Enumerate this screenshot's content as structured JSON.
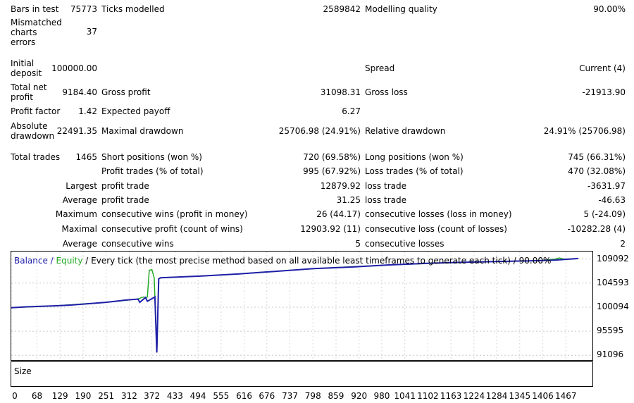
{
  "report": {
    "bars_label": "Bars in test",
    "bars_value": "75773",
    "ticks_label": "Ticks modelled",
    "ticks_value": "2589842",
    "quality_label": "Modelling quality",
    "quality_value": "90.00%",
    "mismatch_label": "Mismatched charts errors",
    "mismatch_value": "37",
    "initial_deposit_label": "Initial deposit",
    "initial_deposit_value": "100000.00",
    "spread_label": "Spread",
    "spread_value": "Current (4)",
    "net_profit_label": "Total net profit",
    "net_profit_value": "9184.40",
    "gross_profit_label": "Gross profit",
    "gross_profit_value": "31098.31",
    "gross_loss_label": "Gross loss",
    "gross_loss_value": "-21913.90",
    "profit_factor_label": "Profit factor",
    "profit_factor_value": "1.42",
    "expected_payoff_label": "Expected payoff",
    "expected_payoff_value": "6.27",
    "abs_drawdown_label": "Absolute drawdown",
    "abs_drawdown_value": "22491.35",
    "max_drawdown_label": "Maximal drawdown",
    "max_drawdown_value": "25706.98 (24.91%)",
    "rel_drawdown_label": "Relative drawdown",
    "rel_drawdown_value": "24.91% (25706.98)",
    "total_trades_label": "Total trades",
    "total_trades_value": "1465",
    "short_label": "Short positions (won %)",
    "short_value": "720 (69.58%)",
    "long_label": "Long positions (won %)",
    "long_value": "745 (66.31%)",
    "profit_trades_label": "Profit trades (% of total)",
    "profit_trades_value": "995 (67.92%)",
    "loss_trades_label": "Loss trades (% of total)",
    "loss_trades_value": "470 (32.08%)",
    "largest_label": "Largest",
    "largest_profit_label": "profit trade",
    "largest_profit_value": "12879.92",
    "largest_loss_label": "loss trade",
    "largest_loss_value": "-3631.97",
    "average_label": "Average",
    "average_profit_label": "profit trade",
    "average_profit_value": "31.25",
    "average_loss_label": "loss trade",
    "average_loss_value": "-46.63",
    "maximum_label": "Maximum",
    "max_cons_wins_label": "consecutive wins (profit in money)",
    "max_cons_wins_value": "26 (44.17)",
    "max_cons_losses_label": "consecutive losses (loss in money)",
    "max_cons_losses_value": "5 (-24.09)",
    "maximal_label": "Maximal",
    "maximal_cons_profit_label": "consecutive profit (count of wins)",
    "maximal_cons_profit_value": "12903.92 (11)",
    "maximal_cons_loss_label": "consecutive loss (count of losses)",
    "maximal_cons_loss_value": "-10282.28 (4)",
    "avg_cons_label": "Average",
    "avg_cons_wins_label": "consecutive wins",
    "avg_cons_wins_value": "5",
    "avg_cons_losses_label": "consecutive losses",
    "avg_cons_losses_value": "2"
  },
  "chart_data": {
    "type": "line",
    "title_parts": {
      "balance": "Balance",
      "sep1": " / ",
      "equity": "Equity",
      "rest": " / Every tick (the most precise method based on all available least timeframes to generate each tick) / 90.00%"
    },
    "y_ticks": [
      "109092",
      "104593",
      "100094",
      "95595",
      "91096"
    ],
    "y_tick_values": [
      109092,
      104593,
      100094,
      95595,
      91096
    ],
    "x_ticks": [
      "0",
      "68",
      "129",
      "190",
      "251",
      "312",
      "372",
      "433",
      "494",
      "555",
      "616",
      "676",
      "737",
      "798",
      "859",
      "920",
      "980",
      "1041",
      "1102",
      "1163",
      "1224",
      "1284",
      "1345",
      "1406",
      "1467"
    ],
    "ylim": [
      90200,
      110500
    ],
    "xlim": [
      0,
      1500
    ],
    "colors": {
      "balance": "#1f1fa8",
      "equity": "#22aa22"
    },
    "series": [
      {
        "name": "Balance",
        "x": [
          0,
          40,
          80,
          120,
          160,
          200,
          250,
          290,
          300,
          335,
          340,
          355,
          360,
          380,
          385,
          390,
          395,
          500,
          600,
          700,
          800,
          900,
          1000,
          1100,
          1200,
          1300,
          1400,
          1440,
          1480,
          1500
        ],
        "y": [
          100000,
          100150,
          100250,
          100350,
          100500,
          100700,
          101000,
          101300,
          101400,
          101600,
          101000,
          101900,
          101200,
          102000,
          91600,
          105400,
          105600,
          105900,
          106300,
          106800,
          107300,
          107600,
          108000,
          108300,
          108500,
          108650,
          108800,
          108900,
          109100,
          109200
        ]
      },
      {
        "name": "Equity",
        "x": [
          0,
          120,
          250,
          335,
          345,
          350,
          355,
          360,
          365,
          372,
          378,
          385,
          390,
          395,
          500,
          600,
          800,
          1000,
          1200,
          1400,
          1440,
          1450,
          1460,
          1480,
          1500
        ],
        "y": [
          100000,
          100350,
          101000,
          101600,
          101900,
          102000,
          101800,
          102000,
          107000,
          107100,
          105600,
          91600,
          105400,
          105600,
          105900,
          106300,
          107300,
          108000,
          108500,
          108800,
          109100,
          109300,
          109100,
          109100,
          109200
        ]
      }
    ],
    "size_label": "Size"
  }
}
